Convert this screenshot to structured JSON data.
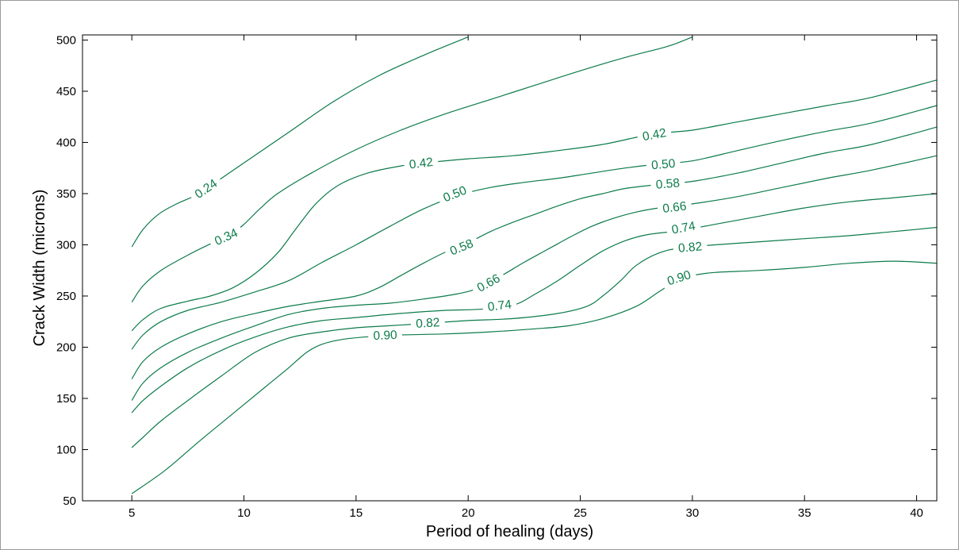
{
  "chart_data": {
    "type": "contour",
    "xlabel": "Period of healing (days)",
    "ylabel": "Crack Width (microns)",
    "xlim": [
      2.8,
      40.9
    ],
    "ylim": [
      50,
      505
    ],
    "xticks": [
      5,
      10,
      15,
      20,
      25,
      30,
      35,
      40
    ],
    "yticks": [
      50,
      100,
      150,
      200,
      250,
      300,
      350,
      400,
      450,
      500
    ],
    "grid": false,
    "line_color": "#0c7b4a",
    "levels": [
      {
        "level": "0.24",
        "points": [
          [
            5,
            298
          ],
          [
            5.5,
            315
          ],
          [
            6.2,
            330
          ],
          [
            7,
            340
          ],
          [
            8,
            350
          ],
          [
            9,
            365
          ],
          [
            10,
            380
          ],
          [
            12,
            410
          ],
          [
            14,
            440
          ],
          [
            16,
            465
          ],
          [
            18,
            485
          ],
          [
            20,
            503
          ]
        ],
        "labels": [
          {
            "x": 8.3,
            "y": 355,
            "text": "0.24"
          }
        ]
      },
      {
        "level": "0.34",
        "points": [
          [
            5,
            244
          ],
          [
            5.5,
            260
          ],
          [
            6.3,
            275
          ],
          [
            7.5,
            290
          ],
          [
            8.6,
            302
          ],
          [
            9.4,
            310
          ],
          [
            10,
            320
          ],
          [
            10.7,
            335
          ],
          [
            11.5,
            350
          ],
          [
            13,
            370
          ],
          [
            15,
            393
          ],
          [
            17,
            412
          ],
          [
            19,
            428
          ],
          [
            21,
            442
          ],
          [
            23,
            456
          ],
          [
            25,
            470
          ],
          [
            27,
            483
          ],
          [
            28.6,
            492
          ],
          [
            29.2,
            496
          ],
          [
            30,
            503
          ]
        ],
        "labels": [
          {
            "x": 9.2,
            "y": 308,
            "text": "0.34"
          }
        ]
      },
      {
        "level": "0.42",
        "points": [
          [
            5,
            216
          ],
          [
            5.5,
            227
          ],
          [
            6.3,
            238
          ],
          [
            7.5,
            245
          ],
          [
            8.5,
            250
          ],
          [
            9.5,
            258
          ],
          [
            10.5,
            272
          ],
          [
            11.5,
            292
          ],
          [
            12.3,
            315
          ],
          [
            13.2,
            340
          ],
          [
            14.2,
            358
          ],
          [
            15.5,
            370
          ],
          [
            17,
            377
          ],
          [
            18.5,
            381
          ],
          [
            20,
            384
          ],
          [
            22,
            387
          ],
          [
            24,
            392
          ],
          [
            26,
            398
          ],
          [
            27.5,
            405
          ],
          [
            28.5,
            409
          ],
          [
            30,
            412
          ],
          [
            32,
            420
          ],
          [
            34,
            428
          ],
          [
            36,
            436
          ],
          [
            38,
            444
          ],
          [
            40.9,
            461
          ]
        ],
        "labels": [
          {
            "x": 17.9,
            "y": 380,
            "text": "0.42"
          },
          {
            "x": 28.3,
            "y": 408,
            "text": "0.42"
          }
        ]
      },
      {
        "level": "0.50",
        "points": [
          [
            5,
            198
          ],
          [
            5.5,
            212
          ],
          [
            6.3,
            225
          ],
          [
            7.5,
            236
          ],
          [
            9,
            244
          ],
          [
            10.5,
            254
          ],
          [
            12,
            265
          ],
          [
            13.5,
            283
          ],
          [
            15,
            300
          ],
          [
            16.5,
            318
          ],
          [
            18,
            335
          ],
          [
            19.5,
            348
          ],
          [
            21,
            356
          ],
          [
            22.5,
            361
          ],
          [
            24,
            365
          ],
          [
            25.5,
            370
          ],
          [
            27,
            375
          ],
          [
            28.5,
            379
          ],
          [
            30,
            382
          ],
          [
            32,
            392
          ],
          [
            34,
            402
          ],
          [
            36,
            411
          ],
          [
            38,
            419
          ],
          [
            40.9,
            436
          ]
        ],
        "labels": [
          {
            "x": 19.4,
            "y": 350,
            "text": "0.50"
          },
          {
            "x": 28.7,
            "y": 379,
            "text": "0.50"
          }
        ]
      },
      {
        "level": "0.58",
        "points": [
          [
            5,
            169
          ],
          [
            5.5,
            186
          ],
          [
            6.3,
            200
          ],
          [
            7.5,
            213
          ],
          [
            9,
            225
          ],
          [
            10.5,
            233
          ],
          [
            12,
            240
          ],
          [
            13.5,
            245
          ],
          [
            15,
            250
          ],
          [
            16,
            258
          ],
          [
            17,
            270
          ],
          [
            18,
            282
          ],
          [
            19,
            293
          ],
          [
            20,
            302
          ],
          [
            21,
            313
          ],
          [
            22,
            322
          ],
          [
            23,
            330
          ],
          [
            24,
            338
          ],
          [
            25,
            345
          ],
          [
            26,
            350
          ],
          [
            27,
            355
          ],
          [
            28.5,
            359
          ],
          [
            30,
            362
          ],
          [
            32,
            370
          ],
          [
            34,
            380
          ],
          [
            36,
            390
          ],
          [
            38,
            398
          ],
          [
            40.9,
            415
          ]
        ],
        "labels": [
          {
            "x": 19.7,
            "y": 298,
            "text": "0.58"
          },
          {
            "x": 28.9,
            "y": 360,
            "text": "0.58"
          }
        ]
      },
      {
        "level": "0.66",
        "points": [
          [
            5,
            148
          ],
          [
            5.5,
            165
          ],
          [
            6.3,
            180
          ],
          [
            7.5,
            195
          ],
          [
            9,
            209
          ],
          [
            10.5,
            221
          ],
          [
            12,
            232
          ],
          [
            13.5,
            238
          ],
          [
            15,
            241
          ],
          [
            16.5,
            243
          ],
          [
            18,
            247
          ],
          [
            19.5,
            252
          ],
          [
            20.5,
            258
          ],
          [
            21.5,
            270
          ],
          [
            22.5,
            283
          ],
          [
            23.5,
            295
          ],
          [
            24.5,
            307
          ],
          [
            25.5,
            318
          ],
          [
            26.5,
            326
          ],
          [
            27.5,
            332
          ],
          [
            28.5,
            336
          ],
          [
            30,
            340
          ],
          [
            32,
            347
          ],
          [
            34,
            356
          ],
          [
            36,
            365
          ],
          [
            38,
            373
          ],
          [
            40.9,
            387
          ]
        ],
        "labels": [
          {
            "x": 20.9,
            "y": 263,
            "text": "0.66"
          },
          {
            "x": 29.2,
            "y": 337,
            "text": "0.66"
          }
        ]
      },
      {
        "level": "0.74",
        "points": [
          [
            5,
            136
          ],
          [
            5.5,
            148
          ],
          [
            6.3,
            162
          ],
          [
            7.5,
            180
          ],
          [
            9,
            197
          ],
          [
            10.5,
            210
          ],
          [
            12,
            220
          ],
          [
            13.5,
            226
          ],
          [
            15,
            229
          ],
          [
            17,
            233
          ],
          [
            19,
            236
          ],
          [
            20.5,
            237
          ],
          [
            22,
            241
          ],
          [
            23,
            252
          ],
          [
            24,
            265
          ],
          [
            25,
            280
          ],
          [
            26,
            294
          ],
          [
            27,
            304
          ],
          [
            28,
            310
          ],
          [
            29.5,
            314
          ],
          [
            31,
            320
          ],
          [
            33,
            328
          ],
          [
            35,
            336
          ],
          [
            37,
            342
          ],
          [
            39,
            346
          ],
          [
            40.9,
            350
          ]
        ],
        "labels": [
          {
            "x": 21.4,
            "y": 241,
            "text": "0.74"
          },
          {
            "x": 29.6,
            "y": 317,
            "text": "0.74"
          }
        ]
      },
      {
        "level": "0.82",
        "points": [
          [
            5,
            102
          ],
          [
            5.5,
            112
          ],
          [
            6.3,
            128
          ],
          [
            7.5,
            148
          ],
          [
            9,
            172
          ],
          [
            10.5,
            195
          ],
          [
            12,
            209
          ],
          [
            13.5,
            215
          ],
          [
            15,
            219
          ],
          [
            16.5,
            221
          ],
          [
            18,
            223
          ],
          [
            20,
            226
          ],
          [
            22,
            228
          ],
          [
            24,
            233
          ],
          [
            25.3,
            240
          ],
          [
            26,
            250
          ],
          [
            26.8,
            265
          ],
          [
            27.5,
            280
          ],
          [
            28.5,
            292
          ],
          [
            29.5,
            297
          ],
          [
            31,
            300
          ],
          [
            33,
            303
          ],
          [
            35,
            306
          ],
          [
            37,
            309
          ],
          [
            39,
            313
          ],
          [
            40.9,
            317
          ]
        ],
        "labels": [
          {
            "x": 18.2,
            "y": 224,
            "text": "0.82"
          },
          {
            "x": 29.9,
            "y": 298,
            "text": "0.82"
          }
        ]
      },
      {
        "level": "0.90",
        "points": [
          [
            5,
            57
          ],
          [
            6.5,
            80
          ],
          [
            8,
            108
          ],
          [
            9.5,
            135
          ],
          [
            11,
            162
          ],
          [
            12,
            180
          ],
          [
            12.8,
            195
          ],
          [
            13.5,
            203
          ],
          [
            14.5,
            208
          ],
          [
            16,
            211
          ],
          [
            17,
            212
          ],
          [
            19,
            213
          ],
          [
            21,
            215
          ],
          [
            23,
            218
          ],
          [
            24.5,
            221
          ],
          [
            26,
            228
          ],
          [
            27.5,
            240
          ],
          [
            28.5,
            254
          ],
          [
            29.3,
            265
          ],
          [
            30,
            270
          ],
          [
            31,
            273
          ],
          [
            33,
            275
          ],
          [
            35,
            278
          ],
          [
            37,
            282
          ],
          [
            39,
            284
          ],
          [
            40.9,
            282
          ]
        ],
        "labels": [
          {
            "x": 16.3,
            "y": 212,
            "text": "0.90"
          },
          {
            "x": 29.4,
            "y": 268,
            "text": "0.90"
          }
        ]
      }
    ]
  }
}
